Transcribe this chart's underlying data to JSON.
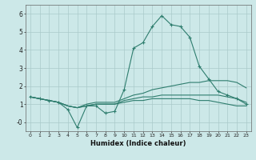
{
  "xlabel": "Humidex (Indice chaleur)",
  "x": [
    0,
    1,
    2,
    3,
    4,
    5,
    6,
    7,
    8,
    9,
    10,
    11,
    12,
    13,
    14,
    15,
    16,
    17,
    18,
    19,
    20,
    21,
    22,
    23
  ],
  "line1": [
    1.4,
    1.3,
    1.2,
    1.1,
    0.7,
    -0.3,
    0.9,
    0.9,
    0.5,
    0.6,
    1.8,
    4.1,
    4.4,
    5.3,
    5.9,
    5.4,
    5.3,
    4.7,
    3.1,
    2.4,
    1.7,
    1.5,
    1.3,
    1.0
  ],
  "line2": [
    1.4,
    1.3,
    1.2,
    1.1,
    0.9,
    0.8,
    1.0,
    1.1,
    1.1,
    1.1,
    1.3,
    1.5,
    1.6,
    1.8,
    1.9,
    2.0,
    2.1,
    2.2,
    2.2,
    2.3,
    2.3,
    2.3,
    2.2,
    1.9
  ],
  "line3": [
    1.4,
    1.3,
    1.2,
    1.1,
    0.9,
    0.8,
    0.9,
    1.0,
    1.0,
    1.0,
    1.2,
    1.3,
    1.4,
    1.4,
    1.5,
    1.5,
    1.5,
    1.5,
    1.5,
    1.5,
    1.5,
    1.4,
    1.3,
    1.1
  ],
  "line4": [
    1.4,
    1.3,
    1.2,
    1.1,
    0.9,
    0.8,
    0.9,
    1.0,
    1.0,
    1.0,
    1.1,
    1.2,
    1.2,
    1.3,
    1.3,
    1.3,
    1.3,
    1.3,
    1.2,
    1.2,
    1.1,
    1.0,
    0.9,
    0.9
  ],
  "line_color": "#2e7d6e",
  "bg_color": "#cce8e8",
  "grid_color": "#aacaca",
  "ylim": [
    -0.5,
    6.5
  ],
  "xlim": [
    -0.5,
    23.5
  ]
}
